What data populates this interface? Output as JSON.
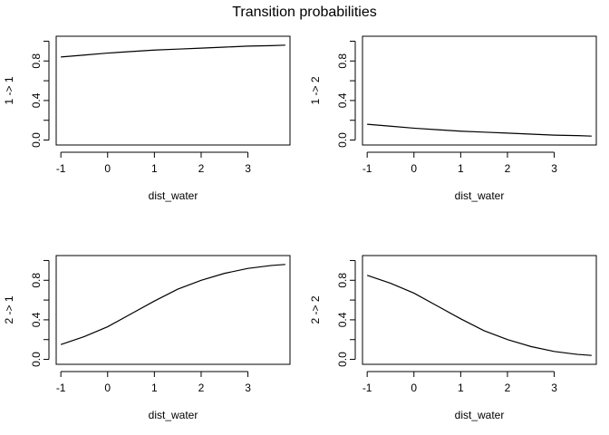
{
  "title": "Transition probabilities",
  "chart_data": [
    {
      "type": "line",
      "xlabel": "dist_water",
      "ylabel": "1 -> 1",
      "xlim": [
        -1.1,
        3.9
      ],
      "ylim": [
        -0.05,
        1.05
      ],
      "xticks": [
        -1,
        0,
        1,
        2,
        3
      ],
      "xtick_labels": [
        "-1",
        "0",
        "1",
        "2",
        "3"
      ],
      "yticks": [
        0.0,
        0.2,
        0.4,
        0.6,
        0.8,
        1.0
      ],
      "ytick_labels": [
        "0.0",
        "",
        "0.4",
        "",
        "0.8",
        ""
      ],
      "grid": false,
      "x": [
        -1.0,
        -0.5,
        0.0,
        0.5,
        1.0,
        1.5,
        2.0,
        2.5,
        3.0,
        3.5,
        3.8
      ],
      "values": [
        0.84,
        0.86,
        0.88,
        0.895,
        0.91,
        0.92,
        0.93,
        0.94,
        0.95,
        0.955,
        0.96
      ]
    },
    {
      "type": "line",
      "xlabel": "dist_water",
      "ylabel": "1 -> 2",
      "xlim": [
        -1.1,
        3.9
      ],
      "ylim": [
        -0.05,
        1.05
      ],
      "xticks": [
        -1,
        0,
        1,
        2,
        3
      ],
      "xtick_labels": [
        "-1",
        "0",
        "1",
        "2",
        "3"
      ],
      "yticks": [
        0.0,
        0.2,
        0.4,
        0.6,
        0.8,
        1.0
      ],
      "ytick_labels": [
        "0.0",
        "",
        "0.4",
        "",
        "0.8",
        ""
      ],
      "grid": false,
      "x": [
        -1.0,
        -0.5,
        0.0,
        0.5,
        1.0,
        1.5,
        2.0,
        2.5,
        3.0,
        3.5,
        3.8
      ],
      "values": [
        0.16,
        0.14,
        0.12,
        0.105,
        0.09,
        0.08,
        0.07,
        0.06,
        0.05,
        0.045,
        0.04
      ]
    },
    {
      "type": "line",
      "xlabel": "dist_water",
      "ylabel": "2 -> 1",
      "xlim": [
        -1.1,
        3.9
      ],
      "ylim": [
        -0.05,
        1.05
      ],
      "xticks": [
        -1,
        0,
        1,
        2,
        3
      ],
      "xtick_labels": [
        "-1",
        "0",
        "1",
        "2",
        "3"
      ],
      "yticks": [
        0.0,
        0.2,
        0.4,
        0.6,
        0.8,
        1.0
      ],
      "ytick_labels": [
        "0.0",
        "",
        "0.4",
        "",
        "0.8",
        ""
      ],
      "grid": false,
      "x": [
        -1.0,
        -0.5,
        0.0,
        0.5,
        1.0,
        1.5,
        2.0,
        2.5,
        3.0,
        3.5,
        3.8
      ],
      "values": [
        0.15,
        0.23,
        0.33,
        0.46,
        0.59,
        0.71,
        0.8,
        0.87,
        0.92,
        0.95,
        0.96
      ]
    },
    {
      "type": "line",
      "xlabel": "dist_water",
      "ylabel": "2 -> 2",
      "xlim": [
        -1.1,
        3.9
      ],
      "ylim": [
        -0.05,
        1.05
      ],
      "xticks": [
        -1,
        0,
        1,
        2,
        3
      ],
      "xtick_labels": [
        "-1",
        "0",
        "1",
        "2",
        "3"
      ],
      "yticks": [
        0.0,
        0.2,
        0.4,
        0.6,
        0.8,
        1.0
      ],
      "ytick_labels": [
        "0.0",
        "",
        "0.4",
        "",
        "0.8",
        ""
      ],
      "grid": false,
      "x": [
        -1.0,
        -0.5,
        0.0,
        0.5,
        1.0,
        1.5,
        2.0,
        2.5,
        3.0,
        3.5,
        3.8
      ],
      "values": [
        0.85,
        0.77,
        0.67,
        0.54,
        0.41,
        0.29,
        0.2,
        0.13,
        0.08,
        0.05,
        0.04
      ]
    }
  ]
}
